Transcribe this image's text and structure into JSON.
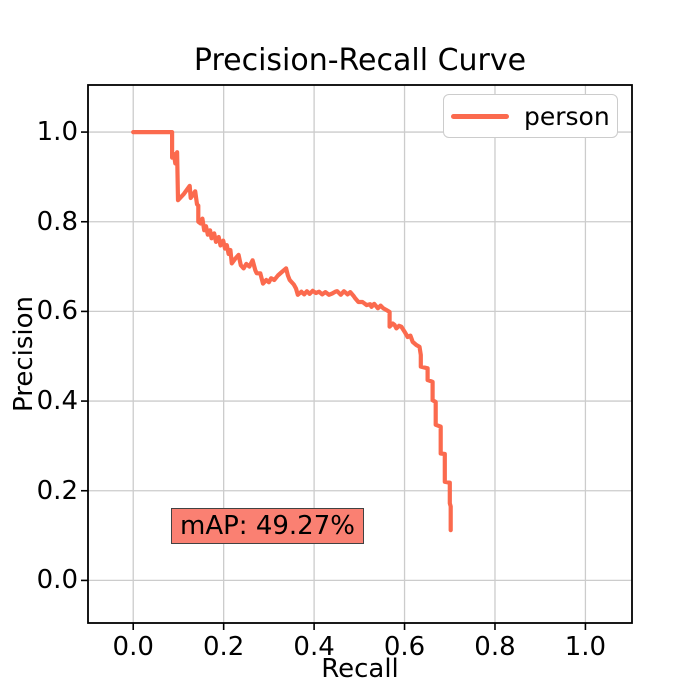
{
  "chart_data": {
    "type": "line",
    "title": "Precision-Recall Curve",
    "xlabel": "Recall",
    "ylabel": "Precision",
    "grid": true,
    "legend_position": "upper right",
    "xlim": [
      -0.1,
      1.103
    ],
    "ylim": [
      -0.095,
      1.105
    ],
    "xticks": {
      "values": [
        0.0,
        0.2,
        0.4,
        0.6,
        0.8,
        1.0
      ],
      "labels": [
        "0.0",
        "0.2",
        "0.4",
        "0.6",
        "0.8",
        "1.0"
      ]
    },
    "yticks": {
      "values": [
        0.0,
        0.2,
        0.4,
        0.6,
        0.8,
        1.0
      ],
      "labels": [
        "0.0",
        "0.2",
        "0.4",
        "0.6",
        "0.8",
        "1.0"
      ]
    },
    "colors": {
      "curve": "#FB6A4E",
      "grid": "#cccccc",
      "spine": "#000000",
      "tick": "#000000",
      "annotation_fill": "#FA8072",
      "annotation_border": "#424242",
      "legend_border": "#cccccc"
    },
    "annotations": [
      {
        "text": "mAP: 49.27%",
        "x": 0.1,
        "y": 0.12
      }
    ],
    "series": [
      {
        "name": "person",
        "points": [
          [
            0.0,
            1.0
          ],
          [
            0.086,
            1.0
          ],
          [
            0.086,
            0.943
          ],
          [
            0.09,
            0.951
          ],
          [
            0.093,
            0.93
          ],
          [
            0.097,
            0.955
          ],
          [
            0.099,
            0.848
          ],
          [
            0.112,
            0.862
          ],
          [
            0.125,
            0.88
          ],
          [
            0.127,
            0.853
          ],
          [
            0.137,
            0.868
          ],
          [
            0.141,
            0.839
          ],
          [
            0.144,
            0.836
          ],
          [
            0.144,
            0.8
          ],
          [
            0.149,
            0.796
          ],
          [
            0.153,
            0.807
          ],
          [
            0.157,
            0.781
          ],
          [
            0.161,
            0.79
          ],
          [
            0.165,
            0.771
          ],
          [
            0.17,
            0.781
          ],
          [
            0.173,
            0.763
          ],
          [
            0.179,
            0.774
          ],
          [
            0.183,
            0.755
          ],
          [
            0.189,
            0.766
          ],
          [
            0.193,
            0.747
          ],
          [
            0.199,
            0.758
          ],
          [
            0.203,
            0.74
          ],
          [
            0.207,
            0.748
          ],
          [
            0.211,
            0.728
          ],
          [
            0.215,
            0.737
          ],
          [
            0.218,
            0.707
          ],
          [
            0.226,
            0.718
          ],
          [
            0.233,
            0.726
          ],
          [
            0.238,
            0.703
          ],
          [
            0.244,
            0.696
          ],
          [
            0.25,
            0.706
          ],
          [
            0.257,
            0.7
          ],
          [
            0.264,
            0.714
          ],
          [
            0.27,
            0.692
          ],
          [
            0.273,
            0.685
          ],
          [
            0.281,
            0.685
          ],
          [
            0.287,
            0.662
          ],
          [
            0.294,
            0.67
          ],
          [
            0.3,
            0.665
          ],
          [
            0.305,
            0.674
          ],
          [
            0.312,
            0.67
          ],
          [
            0.32,
            0.68
          ],
          [
            0.33,
            0.689
          ],
          [
            0.338,
            0.696
          ],
          [
            0.342,
            0.68
          ],
          [
            0.346,
            0.67
          ],
          [
            0.355,
            0.66
          ],
          [
            0.36,
            0.651
          ],
          [
            0.364,
            0.637
          ],
          [
            0.372,
            0.644
          ],
          [
            0.378,
            0.638
          ],
          [
            0.384,
            0.645
          ],
          [
            0.39,
            0.639
          ],
          [
            0.397,
            0.646
          ],
          [
            0.404,
            0.641
          ],
          [
            0.411,
            0.644
          ],
          [
            0.418,
            0.638
          ],
          [
            0.425,
            0.643
          ],
          [
            0.433,
            0.637
          ],
          [
            0.44,
            0.64
          ],
          [
            0.447,
            0.644
          ],
          [
            0.451,
            0.645
          ],
          [
            0.459,
            0.637
          ],
          [
            0.466,
            0.645
          ],
          [
            0.474,
            0.638
          ],
          [
            0.48,
            0.643
          ],
          [
            0.487,
            0.635
          ],
          [
            0.491,
            0.629
          ],
          [
            0.498,
            0.621
          ],
          [
            0.507,
            0.621
          ],
          [
            0.516,
            0.614
          ],
          [
            0.524,
            0.616
          ],
          [
            0.527,
            0.61
          ],
          [
            0.533,
            0.617
          ],
          [
            0.541,
            0.607
          ],
          [
            0.547,
            0.613
          ],
          [
            0.553,
            0.607
          ],
          [
            0.56,
            0.603
          ],
          [
            0.567,
            0.599
          ],
          [
            0.567,
            0.566
          ],
          [
            0.574,
            0.573
          ],
          [
            0.578,
            0.57
          ],
          [
            0.582,
            0.562
          ],
          [
            0.588,
            0.568
          ],
          [
            0.593,
            0.566
          ],
          [
            0.6,
            0.555
          ],
          [
            0.607,
            0.543
          ],
          [
            0.613,
            0.546
          ],
          [
            0.618,
            0.532
          ],
          [
            0.626,
            0.525
          ],
          [
            0.633,
            0.521
          ],
          [
            0.636,
            0.503
          ],
          [
            0.636,
            0.477
          ],
          [
            0.651,
            0.473
          ],
          [
            0.651,
            0.447
          ],
          [
            0.662,
            0.443
          ],
          [
            0.662,
            0.402
          ],
          [
            0.669,
            0.398
          ],
          [
            0.669,
            0.347
          ],
          [
            0.68,
            0.343
          ],
          [
            0.68,
            0.283
          ],
          [
            0.689,
            0.282
          ],
          [
            0.689,
            0.22
          ],
          [
            0.7,
            0.218
          ],
          [
            0.7,
            0.172
          ],
          [
            0.702,
            0.165
          ],
          [
            0.702,
            0.112
          ]
        ]
      }
    ]
  }
}
